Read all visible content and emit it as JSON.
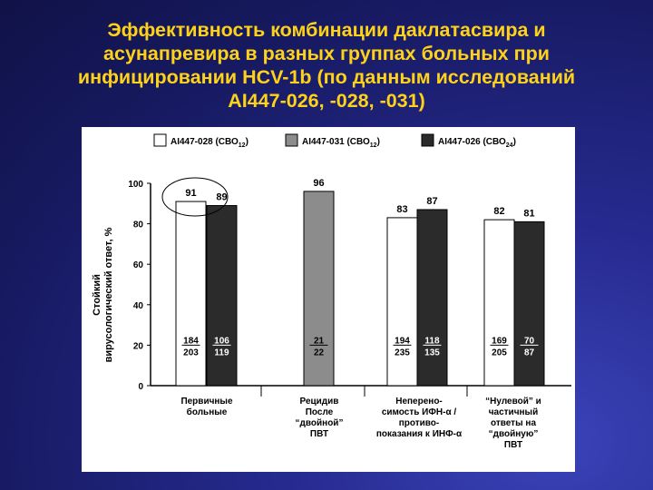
{
  "slide": {
    "title": "Эффективность комбинации даклатасвира и\nасунапревира в разных группах больных при\nинфицировании HCV-1b (по данным исследований\nAI447-026, -028, -031)"
  },
  "chart_data": {
    "type": "bar",
    "ylabel_line1": "Стойкий",
    "ylabel_line2": "вирусологический ответ, %",
    "ylim": [
      0,
      100
    ],
    "yticks": [
      0,
      20,
      40,
      60,
      80,
      100
    ],
    "legend": [
      {
        "label_main": "AI447-028 (СВО",
        "label_sub": "12",
        "label_end": ")",
        "color": "#ffffff"
      },
      {
        "label_main": "AI447-031 (СВО",
        "label_sub": "12",
        "label_end": ")",
        "color": "#8c8c8c"
      },
      {
        "label_main": "AI447-026 (СВО",
        "label_sub": "24",
        "label_end": ")",
        "color": "#2b2b2b"
      }
    ],
    "groups": [
      {
        "label": [
          "Первичные",
          "больные"
        ],
        "bars": [
          {
            "series": 0,
            "value": 91,
            "label": "91",
            "n": "184",
            "d": "203"
          },
          {
            "series": 2,
            "value": 89,
            "label": "89",
            "n": "106",
            "d": "119"
          }
        ]
      },
      {
        "label": [
          "Рецидив",
          "После",
          "“двойной”",
          "ПВТ"
        ],
        "bars": [
          {
            "series": 1,
            "value": 96,
            "label": "96",
            "n": "21",
            "d": "22"
          }
        ]
      },
      {
        "label": [
          "Неперено-",
          "симость ИФН-α /",
          "противо-",
          "показания к ИНФ-α"
        ],
        "bars": [
          {
            "series": 0,
            "value": 83,
            "label": "83",
            "n": "194",
            "d": "235"
          },
          {
            "series": 2,
            "value": 87,
            "label": "87",
            "n": "118",
            "d": "135"
          }
        ]
      },
      {
        "label": [
          "“Нулевой” и",
          "частичный",
          "ответы на",
          "“двойную”",
          "ПВТ"
        ],
        "bars": [
          {
            "series": 0,
            "value": 82,
            "label": "82",
            "n": "169",
            "d": "205"
          },
          {
            "series": 2,
            "value": 81,
            "label": "81",
            "n": "70",
            "d": "87"
          }
        ]
      }
    ],
    "highlight": "ellipse around first group values",
    "grid": false,
    "legend_position": "top"
  }
}
